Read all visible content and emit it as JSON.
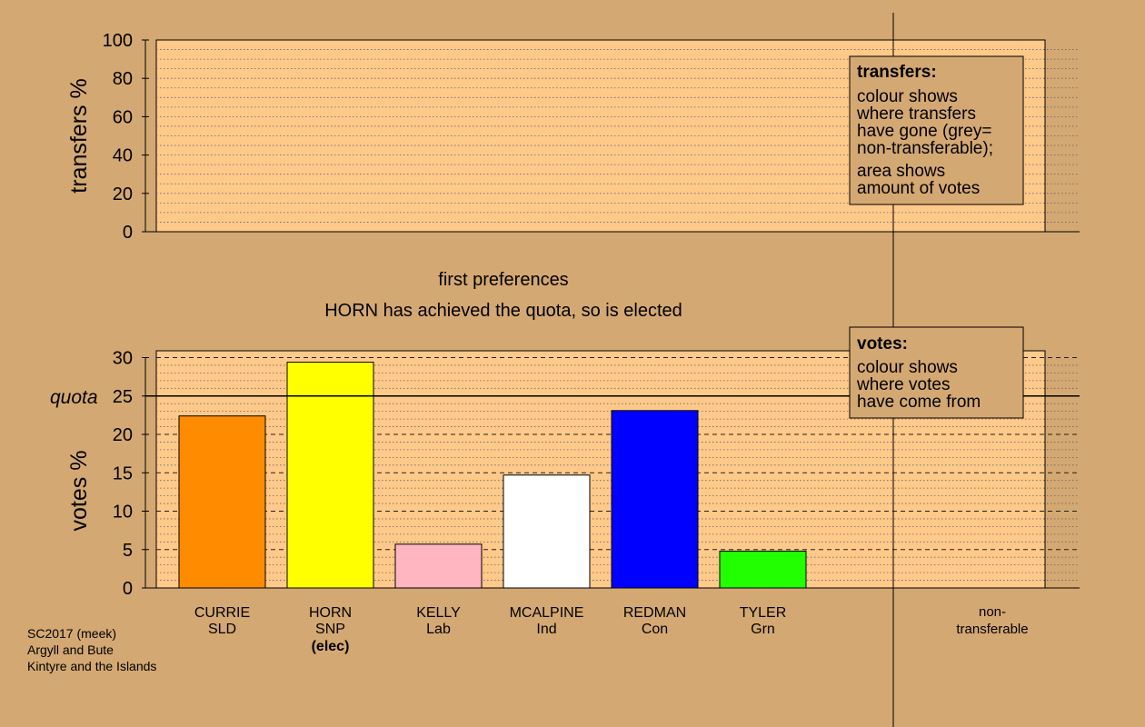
{
  "chart_data": [
    {
      "type": "bar",
      "panel": "transfers",
      "ylabel": "transfers %",
      "ylim": [
        0,
        100
      ],
      "yticks": [
        0,
        20,
        40,
        60,
        80,
        100
      ],
      "series": [],
      "legend": {
        "title": "transfers:",
        "lines": [
          "colour shows",
          "where transfers",
          "have gone (grey=",
          "non-transferable);",
          "area shows",
          "amount of votes"
        ],
        "placement": "top-right"
      }
    },
    {
      "type": "bar",
      "panel": "votes",
      "title_lines": [
        "first preferences",
        "HORN has achieved the quota, so is elected"
      ],
      "ylabel": "votes %",
      "ylim": [
        0,
        30
      ],
      "yticks": [
        0,
        5,
        10,
        15,
        20,
        25,
        30
      ],
      "quota": {
        "label": "quota",
        "value": 25
      },
      "categories": [
        {
          "name": "CURRIE",
          "party": "SLD",
          "note": ""
        },
        {
          "name": "HORN",
          "party": "SNP",
          "note": "(elec)"
        },
        {
          "name": "KELLY",
          "party": "Lab",
          "note": ""
        },
        {
          "name": "MCALPINE",
          "party": "Ind",
          "note": ""
        },
        {
          "name": "REDMAN",
          "party": "Con",
          "note": ""
        },
        {
          "name": "TYLER",
          "party": "Grn",
          "note": ""
        }
      ],
      "values": [
        22.4,
        29.4,
        5.7,
        14.7,
        23.1,
        4.8
      ],
      "colors": [
        "#ff8c00",
        "#ffff00",
        "#ffb6c1",
        "#ffffff",
        "#0000ff",
        "#22ff00"
      ],
      "nontransferable_label": [
        "non-",
        "transferable"
      ],
      "legend": {
        "title": "votes:",
        "lines": [
          "colour shows",
          "where votes",
          "have come from"
        ],
        "placement": "top-right"
      }
    }
  ],
  "footer": [
    "SC2017 (meek)",
    "Argyll and Bute",
    "Kintyre and the Islands"
  ],
  "colors": {
    "background": "#d4a872",
    "panel": "#ffc98a",
    "legend_box": "#d4a872"
  }
}
